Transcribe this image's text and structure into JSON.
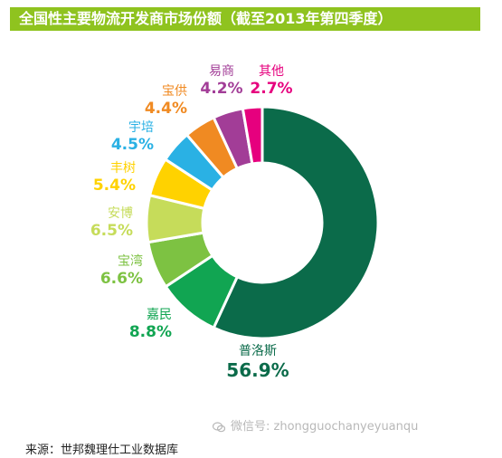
{
  "title": "全国性主要物流开发商市场份额（截至2013年第四季度）",
  "source": "来源：世邦魏理仕工业数据库",
  "watermark": "微信号: zhongguochanyeyuanqu",
  "chart_data": {
    "type": "pie",
    "donut": true,
    "unit": "%",
    "slices": [
      {
        "label": "普洛斯",
        "value": 56.9,
        "value_text": "56.9%",
        "color": "#0b6b4a"
      },
      {
        "label": "嘉民",
        "value": 8.8,
        "value_text": "8.8%",
        "color": "#11a552"
      },
      {
        "label": "宝湾",
        "value": 6.6,
        "value_text": "6.6%",
        "color": "#7dc242"
      },
      {
        "label": "安博",
        "value": 6.5,
        "value_text": "6.5%",
        "color": "#c6dc5a"
      },
      {
        "label": "丰树",
        "value": 5.4,
        "value_text": "5.4%",
        "color": "#ffd200"
      },
      {
        "label": "宇培",
        "value": 4.5,
        "value_text": "4.5%",
        "color": "#2ab1e4"
      },
      {
        "label": "宝供",
        "value": 4.4,
        "value_text": "4.4%",
        "color": "#f08a22"
      },
      {
        "label": "易商",
        "value": 4.2,
        "value_text": "4.2%",
        "color": "#a23d97"
      },
      {
        "label": "其他",
        "value": 2.7,
        "value_text": "2.7%",
        "color": "#e6007e"
      }
    ]
  }
}
